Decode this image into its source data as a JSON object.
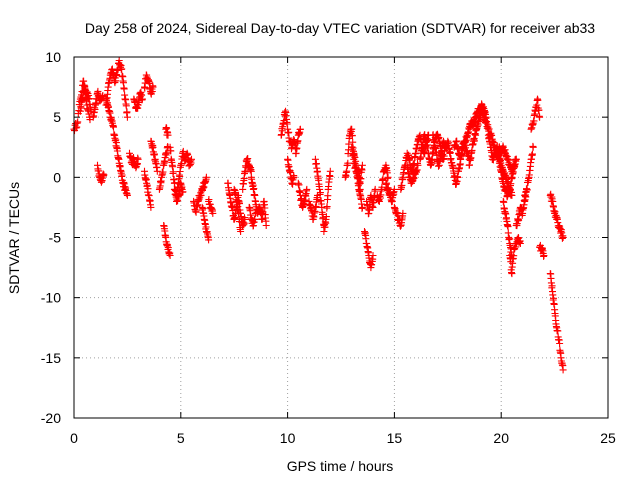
{
  "chart_data": {
    "type": "scatter",
    "title": "Day 258 of 2024, Sidereal Day-to-day VTEC variation (SDTVAR) for receiver ab33",
    "xlabel": "GPS time / hours",
    "ylabel": "SDTVAR / TECUs",
    "xlim": [
      0,
      25
    ],
    "ylim": [
      -20,
      10
    ],
    "xticks": [
      0,
      5,
      10,
      15,
      20,
      25
    ],
    "yticks": [
      -20,
      -15,
      -10,
      -5,
      0,
      5,
      10
    ],
    "grid": true,
    "marker": "plus",
    "color": "#ff0000",
    "series": [
      {
        "name": "SDTVAR",
        "segments": [
          {
            "x": [
              0.0,
              0.15,
              0.3,
              0.45,
              0.6,
              0.7,
              0.8
            ],
            "y": [
              4.0,
              4.5,
              6.5,
              8.0,
              7.0,
              6.5,
              5.5
            ]
          },
          {
            "x": [
              0.3,
              0.4,
              0.5,
              0.6,
              0.75
            ],
            "y": [
              5.5,
              6.5,
              7.5,
              6.0,
              4.8
            ]
          },
          {
            "x": [
              0.9,
              1.0,
              1.1,
              1.2,
              1.35
            ],
            "y": [
              5.0,
              6.0,
              7.0,
              6.5,
              6.8
            ]
          },
          {
            "x": [
              1.1,
              1.2,
              1.3,
              1.4
            ],
            "y": [
              1.0,
              0.0,
              -0.3,
              0.2
            ]
          },
          {
            "x": [
              1.5,
              1.6,
              1.7,
              1.8,
              1.9,
              2.0,
              2.1,
              2.2,
              2.3,
              2.4,
              2.5
            ],
            "y": [
              6.0,
              7.5,
              8.5,
              9.0,
              8.0,
              8.5,
              9.5,
              9.3,
              8.0,
              6.5,
              5.0
            ]
          },
          {
            "x": [
              1.5,
              1.6,
              1.7,
              1.8,
              1.9,
              2.0,
              2.1,
              2.2,
              2.3,
              2.4,
              2.5
            ],
            "y": [
              6.5,
              5.8,
              5.0,
              4.5,
              3.5,
              2.5,
              1.5,
              0.5,
              -0.5,
              -1.0,
              -1.5
            ]
          },
          {
            "x": [
              2.6,
              2.7,
              2.8,
              2.9,
              3.0
            ],
            "y": [
              2.0,
              1.2,
              1.5,
              0.8,
              1.5
            ]
          },
          {
            "x": [
              2.8,
              2.9,
              3.0,
              3.1,
              3.2
            ],
            "y": [
              6.5,
              5.8,
              6.0,
              7.0,
              6.5
            ]
          },
          {
            "x": [
              3.3,
              3.4,
              3.5,
              3.6,
              3.7
            ],
            "y": [
              7.5,
              8.5,
              8.0,
              7.0,
              7.5
            ]
          },
          {
            "x": [
              3.3,
              3.4,
              3.5,
              3.6
            ],
            "y": [
              0.5,
              -0.5,
              -1.5,
              -2.5
            ]
          },
          {
            "x": [
              3.6,
              3.7,
              3.8,
              3.9
            ],
            "y": [
              3.0,
              2.5,
              1.5,
              0.5
            ]
          },
          {
            "x": [
              4.0,
              4.1,
              4.2,
              4.3,
              4.4
            ],
            "y": [
              -1.0,
              0.0,
              1.0,
              2.0,
              2.5
            ]
          },
          {
            "x": [
              4.2,
              4.3,
              4.4,
              4.5
            ],
            "y": [
              -4.0,
              -5.0,
              -6.0,
              -6.5
            ]
          },
          {
            "x": [
              4.3,
              4.4
            ],
            "y": [
              4.0,
              3.5
            ]
          },
          {
            "x": [
              4.5,
              4.6,
              4.7,
              4.8,
              4.9,
              5.0,
              5.1,
              5.2,
              5.3,
              5.4,
              5.5
            ],
            "y": [
              2.5,
              1.0,
              -0.5,
              -1.5,
              -0.5,
              1.0,
              2.0,
              1.5,
              2.0,
              1.0,
              1.5
            ]
          },
          {
            "x": [
              4.7,
              4.8,
              4.9,
              5.0,
              5.1
            ],
            "y": [
              -1.0,
              -2.0,
              -1.5,
              -0.5,
              -1.2
            ]
          },
          {
            "x": [
              5.6,
              5.7,
              5.8,
              5.9,
              6.0,
              6.1,
              6.2
            ],
            "y": [
              -2.0,
              -2.8,
              -2.0,
              -1.5,
              -1.0,
              -0.5,
              0.0
            ]
          },
          {
            "x": [
              6.0,
              6.1,
              6.2,
              6.3
            ],
            "y": [
              -2.5,
              -3.5,
              -4.5,
              -5.2
            ]
          },
          {
            "x": [
              6.3,
              6.4,
              6.5
            ],
            "y": [
              -2.0,
              -2.5,
              -3.0
            ]
          },
          {
            "x": [
              7.2,
              7.3,
              7.4,
              7.5,
              7.6,
              7.7,
              7.8,
              7.9,
              8.0
            ],
            "y": [
              -0.5,
              -1.5,
              -2.5,
              -3.5,
              -2.5,
              -1.5,
              -3.0,
              -4.0,
              -3.5
            ]
          },
          {
            "x": [
              7.5,
              7.6,
              7.7,
              7.8
            ],
            "y": [
              -1.0,
              -2.0,
              -3.0,
              -4.5
            ]
          },
          {
            "x": [
              7.9,
              8.0,
              8.1,
              8.2,
              8.3
            ],
            "y": [
              -1.0,
              0.5,
              1.5,
              1.0,
              0.5
            ]
          },
          {
            "x": [
              8.3,
              8.4,
              8.5,
              8.6,
              8.7,
              8.8,
              8.9,
              9.0
            ],
            "y": [
              0.0,
              -1.0,
              -2.0,
              -3.0,
              -2.5,
              -3.5,
              -2.0,
              -4.0
            ]
          },
          {
            "x": [
              8.2,
              8.3,
              8.4,
              8.5
            ],
            "y": [
              -2.5,
              -3.5,
              -4.0,
              -3.0
            ]
          },
          {
            "x": [
              9.7,
              9.8,
              9.9,
              10.0,
              10.1,
              10.2,
              10.3,
              10.4,
              10.5,
              10.6
            ],
            "y": [
              3.5,
              4.5,
              5.5,
              4.0,
              3.0,
              2.5,
              3.0,
              2.0,
              3.5,
              4.0
            ]
          },
          {
            "x": [
              10.0,
              10.1,
              10.2,
              10.3
            ],
            "y": [
              1.5,
              0.5,
              -0.5,
              0.0
            ]
          },
          {
            "x": [
              10.5,
              10.6,
              10.7,
              10.8,
              10.9
            ],
            "y": [
              -0.5,
              -1.5,
              -2.5,
              -2.0,
              -1.0
            ]
          },
          {
            "x": [
              11.0,
              11.1,
              11.2,
              11.3,
              11.4
            ],
            "y": [
              -2.0,
              -2.5,
              -3.5,
              -2.5,
              -1.5
            ]
          },
          {
            "x": [
              11.3,
              11.4,
              11.5,
              11.6,
              11.7
            ],
            "y": [
              1.5,
              0.5,
              -1.0,
              -2.5,
              -4.0
            ]
          },
          {
            "x": [
              11.7,
              11.8,
              11.9,
              12.0
            ],
            "y": [
              -4.5,
              -3.5,
              -1.0,
              0.5
            ]
          },
          {
            "x": [
              12.7,
              12.8,
              12.9,
              13.0,
              13.1,
              13.2,
              13.3,
              13.4
            ],
            "y": [
              0.0,
              1.0,
              3.5,
              4.0,
              2.0,
              1.0,
              0.0,
              -1.0
            ]
          },
          {
            "x": [
              13.0,
              13.1,
              13.2,
              13.3,
              13.4,
              13.5
            ],
            "y": [
              2.5,
              1.5,
              0.5,
              -0.5,
              -1.5,
              -2.5
            ]
          },
          {
            "x": [
              13.3,
              13.4,
              13.5
            ],
            "y": [
              0.5,
              -0.5,
              1.0
            ]
          },
          {
            "x": [
              13.6,
              13.7,
              13.8,
              13.9,
              14.0
            ],
            "y": [
              -4.5,
              -5.5,
              -6.5,
              -7.5,
              -6.5
            ]
          },
          {
            "x": [
              13.7,
              13.8,
              13.9,
              14.0,
              14.1
            ],
            "y": [
              -2.0,
              -3.0,
              -1.5,
              -2.5,
              -1.0
            ]
          },
          {
            "x": [
              14.2,
              14.3,
              14.4,
              14.5,
              14.6,
              14.7
            ],
            "y": [
              -1.5,
              -2.0,
              -1.0,
              0.5,
              1.0,
              0.0
            ]
          },
          {
            "x": [
              14.6,
              14.7,
              14.8,
              14.9,
              15.0
            ],
            "y": [
              -0.5,
              -1.0,
              -1.5,
              -2.0,
              -1.0
            ]
          },
          {
            "x": [
              15.0,
              15.1,
              15.2,
              15.3,
              15.4
            ],
            "y": [
              -2.5,
              -3.0,
              -3.5,
              -4.0,
              -3.0
            ]
          },
          {
            "x": [
              15.3,
              15.4,
              15.5,
              15.6,
              15.7,
              15.8,
              15.9,
              16.0,
              16.1,
              16.2,
              16.3,
              16.4,
              16.5,
              16.6
            ],
            "y": [
              -1.0,
              0.0,
              1.0,
              2.0,
              1.5,
              0.5,
              1.0,
              2.0,
              3.0,
              3.5,
              2.5,
              2.0,
              3.0,
              3.5
            ]
          },
          {
            "x": [
              15.6,
              15.7,
              15.8,
              15.9,
              16.0,
              16.1
            ],
            "y": [
              1.0,
              0.0,
              -0.5,
              0.0,
              0.5,
              1.0
            ]
          },
          {
            "x": [
              16.2,
              16.3,
              16.4,
              16.5,
              16.6,
              16.7,
              16.8,
              16.9,
              17.0,
              17.1,
              17.2,
              17.3,
              17.4,
              17.5,
              17.6
            ],
            "y": [
              1.5,
              2.5,
              3.5,
              3.0,
              2.0,
              1.0,
              2.0,
              3.0,
              3.5,
              3.0,
              2.0,
              1.5,
              2.5,
              3.0,
              2.0
            ]
          },
          {
            "x": [
              16.8,
              16.9,
              17.0,
              17.1,
              17.2,
              17.3,
              17.4
            ],
            "y": [
              3.5,
              2.5,
              1.5,
              1.0,
              2.0,
              3.0,
              2.5
            ]
          },
          {
            "x": [
              17.6,
              17.7,
              17.8,
              17.9,
              18.0,
              18.1,
              18.2,
              18.3,
              18.4,
              18.5,
              18.6,
              18.7,
              18.8,
              18.9,
              19.0,
              19.1,
              19.2,
              19.3
            ],
            "y": [
              2.0,
              1.0,
              0.0,
              -0.5,
              0.5,
              1.5,
              2.5,
              3.0,
              3.5,
              4.0,
              4.5,
              4.5,
              5.0,
              5.5,
              5.5,
              6.0,
              5.5,
              5.0
            ]
          },
          {
            "x": [
              17.8,
              17.9,
              18.0,
              18.1,
              18.2,
              18.3,
              18.4,
              18.5
            ],
            "y": [
              2.5,
              3.0,
              2.0,
              1.5,
              2.5,
              3.0,
              2.0,
              1.5
            ]
          },
          {
            "x": [
              18.5,
              18.6,
              18.7,
              18.8,
              18.9,
              19.0,
              19.1,
              19.2,
              19.3,
              19.4,
              19.5,
              19.6,
              19.7,
              19.8,
              19.9,
              20.0,
              20.1,
              20.2,
              20.3,
              20.4,
              20.5
            ],
            "y": [
              1.0,
              2.0,
              3.0,
              3.5,
              4.5,
              5.0,
              5.5,
              5.0,
              4.5,
              4.0,
              3.5,
              3.0,
              2.5,
              2.0,
              1.5,
              1.0,
              0.5,
              0.0,
              -0.5,
              -1.0,
              -1.5
            ]
          },
          {
            "x": [
              19.4,
              19.5,
              19.6,
              19.7,
              19.8,
              19.9,
              20.0,
              20.1,
              20.2,
              20.3,
              20.4,
              20.5,
              20.6,
              20.7
            ],
            "y": [
              3.5,
              2.5,
              1.5,
              2.0,
              2.5,
              1.5,
              0.5,
              -0.5,
              -1.0,
              -1.5,
              -1.0,
              0.0,
              1.0,
              1.5
            ]
          },
          {
            "x": [
              19.9,
              20.0,
              20.1,
              20.2,
              20.3,
              20.4,
              20.5,
              20.6,
              20.7
            ],
            "y": [
              2.5,
              2.0,
              2.5,
              2.0,
              1.5,
              1.0,
              0.5,
              1.0,
              1.5
            ]
          },
          {
            "x": [
              20.1,
              20.2,
              20.3,
              20.4,
              20.5
            ],
            "y": [
              -2.0,
              -3.0,
              -4.0,
              -5.5,
              -6.5
            ]
          },
          {
            "x": [
              20.4,
              20.5,
              20.6,
              20.7,
              20.8,
              20.9
            ],
            "y": [
              -6.5,
              -8.0,
              -6.0,
              -5.5,
              -5.0,
              -5.5
            ]
          },
          {
            "x": [
              20.7,
              20.8,
              20.9,
              21.0,
              21.1,
              21.2
            ],
            "y": [
              -4.0,
              -3.5,
              -2.5,
              -3.0,
              -2.0,
              -1.0
            ]
          },
          {
            "x": [
              21.1,
              21.2,
              21.3,
              21.4,
              21.5
            ],
            "y": [
              -1.5,
              -1.0,
              0.0,
              1.5,
              2.5
            ]
          },
          {
            "x": [
              21.4,
              21.5,
              21.6,
              21.7,
              21.8
            ],
            "y": [
              4.0,
              4.5,
              5.5,
              6.5,
              5.0
            ]
          },
          {
            "x": [
              21.8,
              21.9,
              22.0
            ],
            "y": [
              -5.8,
              -6.0,
              -6.5
            ]
          },
          {
            "x": [
              22.3,
              22.4,
              22.5,
              22.6,
              22.7,
              22.8,
              22.9
            ],
            "y": [
              -1.5,
              -2.0,
              -3.0,
              -3.5,
              -4.0,
              -4.5,
              -5.0
            ]
          },
          {
            "x": [
              22.3,
              22.4,
              22.5,
              22.6,
              22.7,
              22.8,
              22.9
            ],
            "y": [
              -8.0,
              -9.5,
              -11.0,
              -12.5,
              -13.5,
              -15.0,
              -16.0
            ]
          }
        ]
      }
    ]
  }
}
